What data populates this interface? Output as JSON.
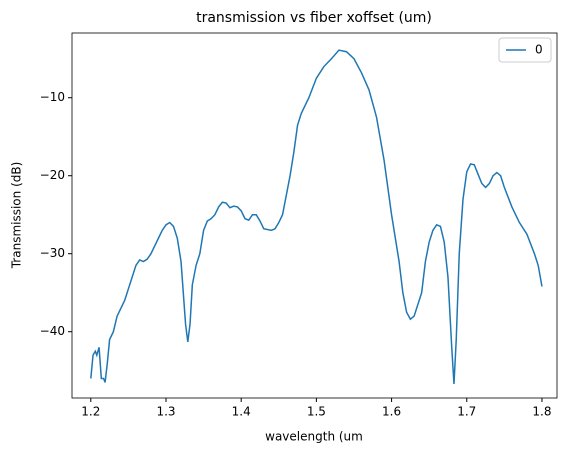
{
  "chart_data": {
    "type": "line",
    "title": "transmission vs fiber xoffset (um)",
    "xlabel": "wavelength (um",
    "ylabel": "Transmission (dB)",
    "x": [
      1.2,
      1.203,
      1.206,
      1.208,
      1.211,
      1.214,
      1.217,
      1.219,
      1.222,
      1.225,
      1.23,
      1.235,
      1.24,
      1.245,
      1.25,
      1.255,
      1.26,
      1.265,
      1.27,
      1.275,
      1.28,
      1.285,
      1.29,
      1.295,
      1.3,
      1.305,
      1.31,
      1.315,
      1.32,
      1.323,
      1.326,
      1.329,
      1.332,
      1.335,
      1.34,
      1.345,
      1.35,
      1.355,
      1.36,
      1.365,
      1.37,
      1.375,
      1.38,
      1.385,
      1.39,
      1.395,
      1.4,
      1.405,
      1.41,
      1.415,
      1.42,
      1.425,
      1.43,
      1.44,
      1.445,
      1.45,
      1.455,
      1.46,
      1.465,
      1.47,
      1.475,
      1.48,
      1.49,
      1.5,
      1.51,
      1.52,
      1.53,
      1.54,
      1.55,
      1.56,
      1.57,
      1.58,
      1.59,
      1.6,
      1.61,
      1.615,
      1.62,
      1.625,
      1.63,
      1.64,
      1.645,
      1.65,
      1.655,
      1.66,
      1.665,
      1.67,
      1.675,
      1.68,
      1.683,
      1.686,
      1.69,
      1.695,
      1.7,
      1.705,
      1.71,
      1.715,
      1.72,
      1.725,
      1.73,
      1.735,
      1.74,
      1.745,
      1.75,
      1.76,
      1.77,
      1.78,
      1.79,
      1.795,
      1.8
    ],
    "series": [
      {
        "name": "0",
        "color": "#1f77b4",
        "values": [
          -46,
          -43,
          -42.5,
          -43,
          -42,
          -46,
          -46,
          -46.5,
          -44,
          -41,
          -40,
          -38,
          -37,
          -36,
          -34.5,
          -33,
          -31.5,
          -30.8,
          -31,
          -30.7,
          -30,
          -29,
          -28,
          -27,
          -26.3,
          -26,
          -26.5,
          -28,
          -31,
          -35,
          -39,
          -41.3,
          -39,
          -34,
          -31.5,
          -30,
          -27,
          -25.8,
          -25.5,
          -25,
          -24,
          -23.4,
          -23.5,
          -24.1,
          -23.9,
          -24,
          -24.5,
          -25.5,
          -25.7,
          -25,
          -25,
          -25.8,
          -26.8,
          -27,
          -26.8,
          -26,
          -25,
          -22.5,
          -20,
          -17,
          -13.5,
          -12,
          -10,
          -7.5,
          -6,
          -5,
          -3.9,
          -4.1,
          -5,
          -6.8,
          -9,
          -12.5,
          -18,
          -25,
          -31,
          -35,
          -37.5,
          -38.4,
          -38,
          -35,
          -31,
          -28.5,
          -27,
          -26.3,
          -26.5,
          -28.5,
          -33,
          -42,
          -46.7,
          -41,
          -30,
          -23,
          -19.5,
          -18.5,
          -18.6,
          -19.8,
          -21,
          -21.5,
          -21,
          -20,
          -19.6,
          -20,
          -21.5,
          -24,
          -26,
          -27.5,
          -30,
          -31.5,
          -34.2
        ]
      }
    ],
    "xlim": [
      1.175,
      1.82
    ],
    "ylim": [
      -48.5,
      -1.7
    ],
    "xticks": [
      1.2,
      1.3,
      1.4,
      1.5,
      1.6,
      1.7,
      1.8
    ],
    "yticks": [
      {
        "value": -40,
        "label": "−40"
      },
      {
        "value": -30,
        "label": "−30"
      },
      {
        "value": -20,
        "label": "−20"
      },
      {
        "value": -10,
        "label": "−10"
      }
    ],
    "legend": "upper right"
  }
}
